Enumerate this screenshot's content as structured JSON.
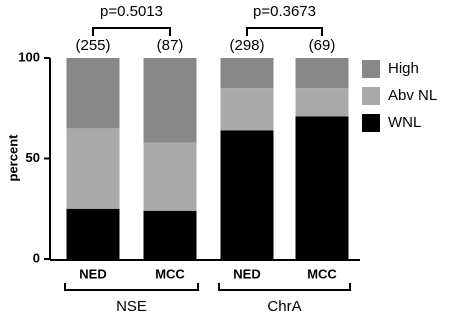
{
  "chart_data": {
    "type": "stacked_bar",
    "y_label": "percent",
    "categories": [
      "NED",
      "MCC",
      "NED",
      "MCC"
    ],
    "groups": [
      {
        "name": "NSE",
        "members": [
          0,
          1
        ]
      },
      {
        "name": "ChrA",
        "members": [
          2,
          3
        ]
      }
    ],
    "counts": [
      "(255)",
      "(87)",
      "(298)",
      "(69)"
    ],
    "comparisons": [
      {
        "label": "p=0.5013",
        "between": [
          0,
          1
        ]
      },
      {
        "label": "p=0.3673",
        "between": [
          2,
          3
        ]
      }
    ],
    "series": [
      {
        "name": "WNL",
        "color": "#000000",
        "values": [
          25,
          24,
          64,
          71
        ]
      },
      {
        "name": "Abv NL",
        "color": "#aaaaaa",
        "values": [
          40,
          34,
          21,
          14
        ]
      },
      {
        "name": "High",
        "color": "#888888",
        "values": [
          35,
          42,
          15,
          15
        ]
      }
    ],
    "ylim": [
      0,
      100
    ],
    "yticks": [
      0,
      50,
      100
    ]
  }
}
